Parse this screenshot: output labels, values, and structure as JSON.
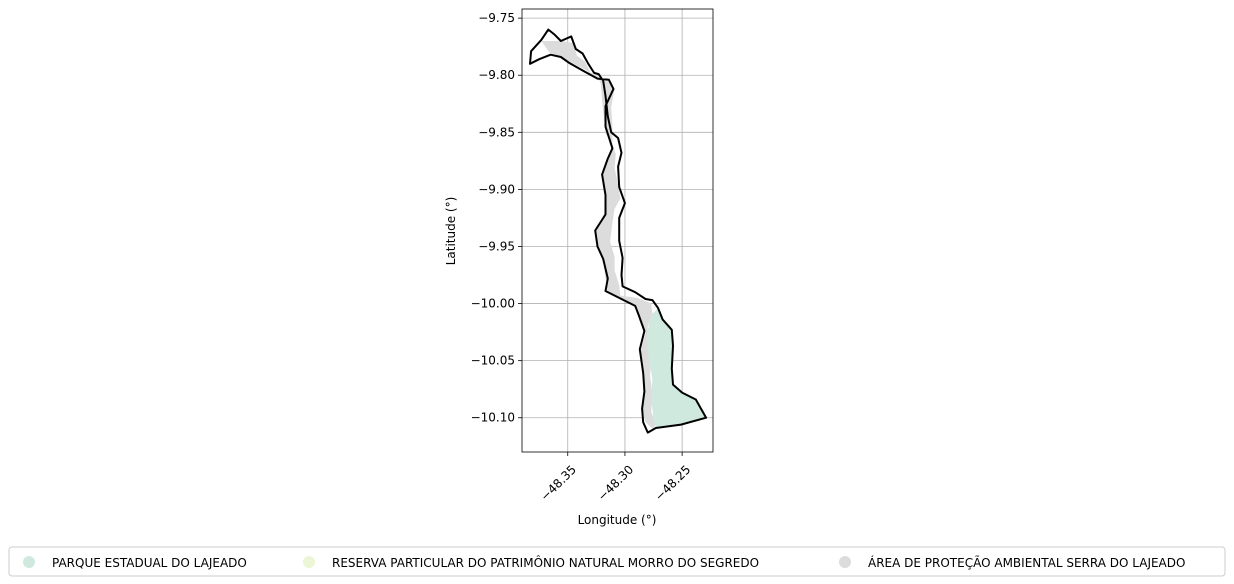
{
  "chart_data": {
    "type": "map",
    "xlabel": "Longitude (°)",
    "ylabel": "Latitude (°)",
    "xlim": [
      -48.39,
      -48.223
    ],
    "ylim": [
      -10.13,
      -9.742
    ],
    "xticks": [
      {
        "value": -48.35,
        "label": "−48.35"
      },
      {
        "value": -48.3,
        "label": "−48.30"
      },
      {
        "value": -48.25,
        "label": "−48.25"
      }
    ],
    "yticks": [
      {
        "value": -9.75,
        "label": "−9.75"
      },
      {
        "value": -9.8,
        "label": "−9.80"
      },
      {
        "value": -9.85,
        "label": "−9.85"
      },
      {
        "value": -9.9,
        "label": "−9.90"
      },
      {
        "value": -9.95,
        "label": "−9.95"
      },
      {
        "value": -10.0,
        "label": "−10.00"
      },
      {
        "value": -10.05,
        "label": "−10.05"
      },
      {
        "value": -10.1,
        "label": "−10.10"
      }
    ],
    "grid": true,
    "legend_position": "bottom",
    "legend": [
      {
        "label": "PARQUE ESTADUAL DO LAJEADO",
        "color": "#cfe9df"
      },
      {
        "label": "RESERVA PARTICULAR DO PATRIMÔNIO NATURAL MORRO DO SEGREDO",
        "color": "#edf5d7"
      },
      {
        "label": "ÁREA DE PROTEÇÃO AMBIENTAL SERRA DO LAJEADO",
        "color": "#dcdcdc"
      }
    ],
    "regions": [
      {
        "name": "ÁREA DE PROTEÇÃO AMBIENTAL SERRA DO LAJEADO",
        "color": "#dcdcdc",
        "coords": [
          [
            -48.373,
            -9.77
          ],
          [
            -48.355,
            -9.77
          ],
          [
            -48.345,
            -9.772
          ],
          [
            -48.342,
            -9.783
          ],
          [
            -48.335,
            -9.788
          ],
          [
            -48.33,
            -9.798
          ],
          [
            -48.324,
            -9.8
          ],
          [
            -48.321,
            -9.808
          ],
          [
            -48.32,
            -9.823
          ],
          [
            -48.318,
            -9.84
          ],
          [
            -48.317,
            -9.851
          ],
          [
            -48.312,
            -9.858
          ],
          [
            -48.308,
            -9.869
          ],
          [
            -48.309,
            -9.881
          ],
          [
            -48.306,
            -9.896
          ],
          [
            -48.304,
            -9.908
          ],
          [
            -48.309,
            -9.917
          ],
          [
            -48.311,
            -9.929
          ],
          [
            -48.313,
            -9.946
          ],
          [
            -48.309,
            -9.959
          ],
          [
            -48.309,
            -9.971
          ],
          [
            -48.305,
            -9.984
          ],
          [
            -48.304,
            -9.993
          ],
          [
            -48.289,
            -9.995
          ],
          [
            -48.277,
            -10.0
          ],
          [
            -48.276,
            -10.009
          ],
          [
            -48.28,
            -10.02
          ],
          [
            -48.28,
            -10.035
          ],
          [
            -48.277,
            -10.049
          ],
          [
            -48.278,
            -10.063
          ],
          [
            -48.276,
            -10.079
          ],
          [
            -48.277,
            -10.095
          ],
          [
            -48.273,
            -10.104
          ],
          [
            -48.275,
            -10.11
          ],
          [
            -48.282,
            -10.104
          ],
          [
            -48.285,
            -10.092
          ],
          [
            -48.283,
            -10.078
          ],
          [
            -48.284,
            -10.062
          ],
          [
            -48.286,
            -10.041
          ],
          [
            -48.282,
            -10.026
          ],
          [
            -48.287,
            -10.01
          ],
          [
            -48.29,
            -10.002
          ],
          [
            -48.303,
            -9.997
          ],
          [
            -48.315,
            -9.99
          ],
          [
            -48.317,
            -9.978
          ],
          [
            -48.319,
            -9.962
          ],
          [
            -48.323,
            -9.951
          ],
          [
            -48.326,
            -9.936
          ],
          [
            -48.318,
            -9.921
          ],
          [
            -48.317,
            -9.905
          ],
          [
            -48.319,
            -9.887
          ],
          [
            -48.315,
            -9.873
          ],
          [
            -48.311,
            -9.862
          ],
          [
            -48.311,
            -9.844
          ],
          [
            -48.312,
            -9.828
          ],
          [
            -48.309,
            -9.812
          ],
          [
            -48.315,
            -9.805
          ],
          [
            -48.324,
            -9.803
          ],
          [
            -48.335,
            -9.795
          ],
          [
            -48.349,
            -9.788
          ],
          [
            -48.357,
            -9.784
          ],
          [
            -48.366,
            -9.78
          ]
        ]
      },
      {
        "name": "PARQUE ESTADUAL DO LAJEADO",
        "color": "#cfe9df",
        "coords": [
          [
            -48.271,
            -10.004
          ],
          [
            -48.267,
            -10.014
          ],
          [
            -48.259,
            -10.023
          ],
          [
            -48.258,
            -10.037
          ],
          [
            -48.259,
            -10.057
          ],
          [
            -48.258,
            -10.071
          ],
          [
            -48.25,
            -10.078
          ],
          [
            -48.238,
            -10.084
          ],
          [
            -48.229,
            -10.1
          ],
          [
            -48.251,
            -10.106
          ],
          [
            -48.273,
            -10.109
          ],
          [
            -48.275,
            -10.1
          ],
          [
            -48.277,
            -10.084
          ],
          [
            -48.276,
            -10.066
          ],
          [
            -48.279,
            -10.049
          ],
          [
            -48.281,
            -10.031
          ],
          [
            -48.279,
            -10.017
          ],
          [
            -48.276,
            -10.009
          ]
        ]
      }
    ],
    "outline": [
      [
        -48.382,
        -9.779
      ],
      [
        -48.373,
        -9.769
      ],
      [
        -48.367,
        -9.76
      ],
      [
        -48.362,
        -9.764
      ],
      [
        -48.356,
        -9.77
      ],
      [
        -48.347,
        -9.766
      ],
      [
        -48.343,
        -9.777
      ],
      [
        -48.337,
        -9.781
      ],
      [
        -48.332,
        -9.79
      ],
      [
        -48.327,
        -9.798
      ],
      [
        -48.323,
        -9.799
      ],
      [
        -48.319,
        -9.805
      ],
      [
        -48.317,
        -9.818
      ],
      [
        -48.315,
        -9.836
      ],
      [
        -48.312,
        -9.85
      ],
      [
        -48.306,
        -9.855
      ],
      [
        -48.303,
        -9.868
      ],
      [
        -48.306,
        -9.88
      ],
      [
        -48.305,
        -9.898
      ],
      [
        -48.3,
        -9.912
      ],
      [
        -48.305,
        -9.925
      ],
      [
        -48.305,
        -9.945
      ],
      [
        -48.302,
        -9.96
      ],
      [
        -48.303,
        -9.975
      ],
      [
        -48.302,
        -9.985
      ],
      [
        -48.291,
        -9.99
      ],
      [
        -48.282,
        -9.996
      ],
      [
        -48.276,
        -9.997
      ],
      [
        -48.271,
        -10.004
      ],
      [
        -48.267,
        -10.014
      ],
      [
        -48.259,
        -10.023
      ],
      [
        -48.258,
        -10.037
      ],
      [
        -48.259,
        -10.057
      ],
      [
        -48.258,
        -10.071
      ],
      [
        -48.25,
        -10.078
      ],
      [
        -48.238,
        -10.084
      ],
      [
        -48.229,
        -10.1
      ],
      [
        -48.251,
        -10.106
      ],
      [
        -48.273,
        -10.109
      ],
      [
        -48.28,
        -10.113
      ],
      [
        -48.284,
        -10.104
      ],
      [
        -48.285,
        -10.092
      ],
      [
        -48.283,
        -10.077
      ],
      [
        -48.284,
        -10.061
      ],
      [
        -48.287,
        -10.04
      ],
      [
        -48.283,
        -10.024
      ],
      [
        -48.288,
        -10.01
      ],
      [
        -48.291,
        -10.002
      ],
      [
        -48.305,
        -9.995
      ],
      [
        -48.317,
        -9.989
      ],
      [
        -48.315,
        -9.978
      ],
      [
        -48.319,
        -9.961
      ],
      [
        -48.324,
        -9.95
      ],
      [
        -48.326,
        -9.936
      ],
      [
        -48.317,
        -9.922
      ],
      [
        -48.317,
        -9.905
      ],
      [
        -48.32,
        -9.887
      ],
      [
        -48.315,
        -9.873
      ],
      [
        -48.311,
        -9.864
      ],
      [
        -48.317,
        -9.845
      ],
      [
        -48.317,
        -9.827
      ],
      [
        -48.31,
        -9.812
      ],
      [
        -48.314,
        -9.804
      ],
      [
        -48.324,
        -9.803
      ],
      [
        -48.335,
        -9.797
      ],
      [
        -48.349,
        -9.789
      ],
      [
        -48.356,
        -9.784
      ],
      [
        -48.365,
        -9.782
      ],
      [
        -48.375,
        -9.786
      ],
      [
        -48.383,
        -9.79
      ]
    ]
  }
}
